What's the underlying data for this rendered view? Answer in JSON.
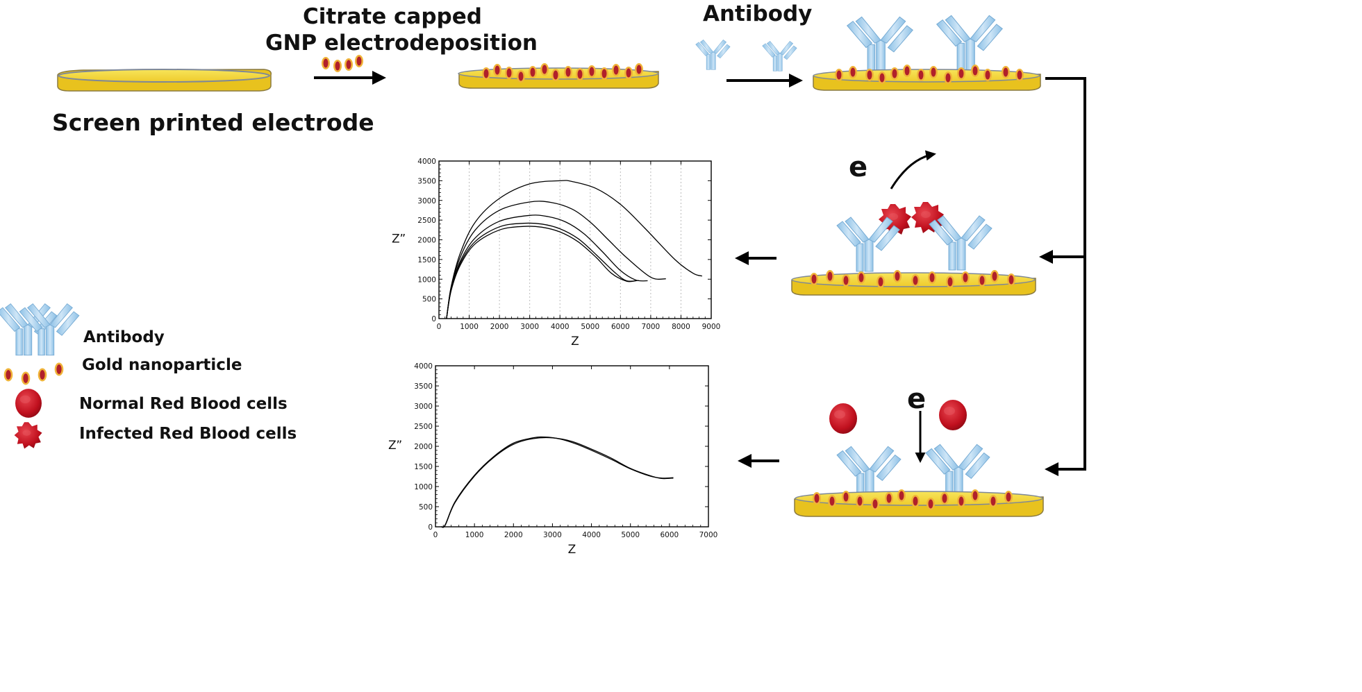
{
  "labels": {
    "screen_printed_electrode": "Screen printed electrode",
    "step1_line1": "Citrate capped",
    "step1_line2": "GNP electrodeposition",
    "step2": "Antibody",
    "electron1": "e",
    "electron2": "e"
  },
  "legend": {
    "antibody": "Antibody",
    "gold_nanoparticle": "Gold nanoparticle",
    "normal_rbc": "Normal Red Blood cells",
    "infected_rbc": "Infected Red Blood cells"
  },
  "colors": {
    "electrode": "#F2D437",
    "electrode_edge": "#C9A81C",
    "antibody": "#A9CFEA",
    "antibody_edge": "#7FB2D8",
    "gnp_core": "#C0262E",
    "gnp_ring": "#F0B43A",
    "rbc": "#C8102E",
    "line": "#000000"
  },
  "chart_data": [
    {
      "type": "line",
      "xlabel": "Z",
      "ylabel": "Z”",
      "xlim": [
        0,
        9000
      ],
      "ylim": [
        0,
        4000
      ],
      "xticks": [
        0,
        1000,
        2000,
        3000,
        4000,
        5000,
        6000,
        7000,
        8000,
        9000
      ],
      "yticks": [
        0,
        500,
        1000,
        1500,
        2000,
        2500,
        3000,
        3500,
        4000
      ],
      "vgrid": true,
      "series": [
        {
          "x": [
            250,
            400,
            700,
            1200,
            2000,
            2800,
            3400,
            4000,
            4600,
            5200,
            5700,
            6200,
            6500
          ],
          "y": [
            0,
            700,
            1350,
            1900,
            2250,
            2340,
            2320,
            2200,
            1950,
            1550,
            1150,
            950,
            960
          ]
        },
        {
          "x": [
            250,
            400,
            700,
            1200,
            2000,
            2800,
            3400,
            4000,
            4600,
            5200,
            5800,
            6200,
            6600
          ],
          "y": [
            0,
            720,
            1400,
            1960,
            2330,
            2420,
            2400,
            2280,
            2030,
            1620,
            1180,
            960,
            970
          ]
        },
        {
          "x": [
            250,
            400,
            700,
            1200,
            2000,
            3000,
            3600,
            4200,
            4800,
            5400,
            6000,
            6500,
            6900
          ],
          "y": [
            0,
            740,
            1450,
            2050,
            2470,
            2620,
            2590,
            2450,
            2150,
            1700,
            1220,
            980,
            960
          ]
        },
        {
          "x": [
            250,
            400,
            700,
            1200,
            2000,
            3000,
            3700,
            4400,
            5000,
            5600,
            6200,
            7000,
            7500
          ],
          "y": [
            0,
            780,
            1550,
            2250,
            2750,
            2960,
            2950,
            2780,
            2450,
            2000,
            1550,
            1050,
            1010
          ]
        },
        {
          "x": [
            250,
            400,
            700,
            1200,
            2000,
            3000,
            4000,
            4400,
            5200,
            6000,
            6800,
            7800,
            8400,
            8700
          ],
          "y": [
            0,
            800,
            1650,
            2450,
            3050,
            3420,
            3500,
            3480,
            3300,
            2900,
            2300,
            1500,
            1150,
            1080
          ]
        }
      ]
    },
    {
      "type": "line",
      "xlabel": "Z",
      "ylabel": "Z”",
      "xlim": [
        0,
        7000
      ],
      "ylim": [
        0,
        4000
      ],
      "xticks": [
        0,
        1000,
        2000,
        3000,
        4000,
        5000,
        6000,
        7000
      ],
      "yticks": [
        0,
        500,
        1000,
        1500,
        2000,
        2500,
        3000,
        3500,
        4000
      ],
      "vgrid": false,
      "series": [
        {
          "x": [
            150,
            250,
            500,
            1000,
            1500,
            2000,
            2500,
            3000,
            3500,
            4000,
            4500,
            5000,
            5500,
            5800,
            6100
          ],
          "y": [
            0,
            40,
            600,
            1260,
            1730,
            2050,
            2190,
            2210,
            2120,
            1930,
            1710,
            1450,
            1270,
            1200,
            1210
          ]
        },
        {
          "x": [
            150,
            250,
            500,
            1000,
            1500,
            2000,
            2500,
            2800,
            3200,
            3600,
            4000,
            4500,
            5000,
            5500,
            5800,
            6100
          ],
          "y": [
            0,
            50,
            620,
            1280,
            1750,
            2080,
            2210,
            2230,
            2180,
            2060,
            1900,
            1680,
            1440,
            1260,
            1210,
            1220
          ]
        }
      ]
    }
  ]
}
